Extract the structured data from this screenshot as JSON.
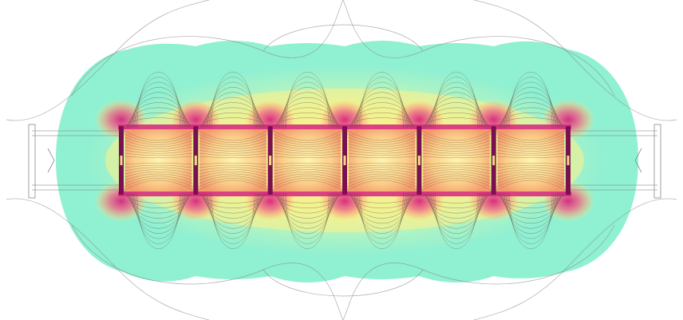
{
  "image": {
    "subject": "field-plot",
    "colors": {
      "background": "#ffffff",
      "field_low": "#8ff0d2",
      "field_mid": "#d9f59a",
      "field_high": "#fff18a",
      "field_peak": "#f29a6a",
      "core": "#d6237f",
      "rib": "#7a1050",
      "contour": "#5a4a3a",
      "outer_line": "#8a8a8a"
    },
    "structure": {
      "rib_count": 7,
      "cell_count": 6
    }
  }
}
